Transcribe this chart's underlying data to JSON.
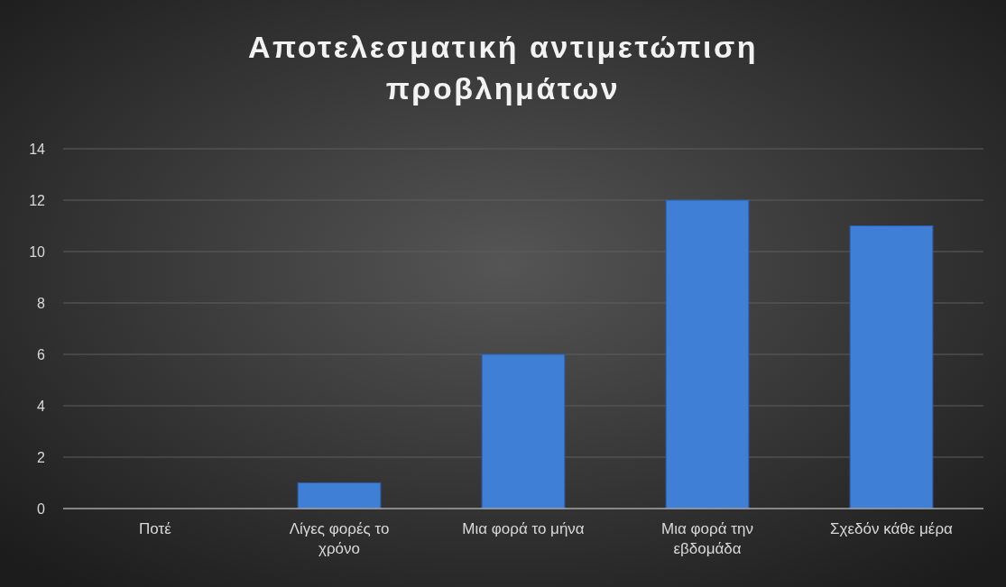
{
  "chart_data": {
    "type": "bar",
    "title": "Αποτελεσματική αντιμετώπιση προβλημάτων",
    "categories": [
      "Ποτέ",
      "Λίγες φορές το χρόνο",
      "Μια φορά το μήνα",
      "Μια φορά την εβδομάδα",
      "Σχεδόν κάθε μέρα"
    ],
    "values": [
      0,
      1,
      6,
      12,
      11
    ],
    "color": "#3f7fd6",
    "ylim": [
      0,
      14
    ],
    "yticks": [
      0,
      2,
      4,
      6,
      8,
      10,
      12,
      14
    ],
    "grid": "y"
  }
}
